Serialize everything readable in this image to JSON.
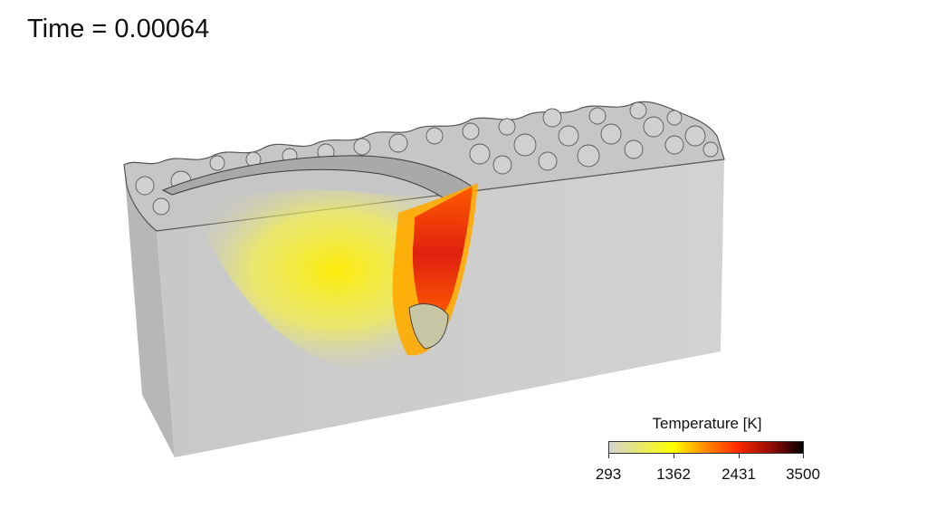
{
  "time_label": "Time = 0.00064",
  "legend": {
    "title": "Temperature [K]",
    "ticks": [
      "293",
      "1362",
      "2431",
      "3500"
    ],
    "colors": [
      "#d3d3d3",
      "#ffff00",
      "#ff2a00",
      "#000000"
    ]
  },
  "colors": {
    "block_front": "#cfcfcf",
    "block_side": "#b9b9b9",
    "powder": "#c9c9c9",
    "powder_edge": "#4a4a4a",
    "hot_zone_mid": "#ff9a00",
    "hot_zone_core": "#c81e0a"
  }
}
